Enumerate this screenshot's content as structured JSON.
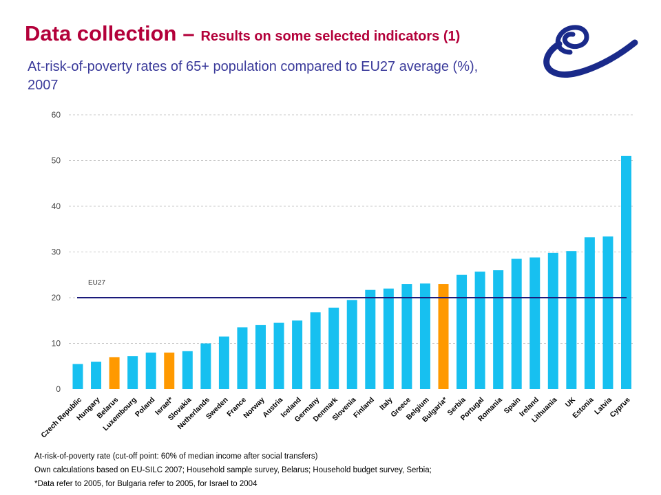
{
  "title": {
    "main": "Data collection",
    "dash": "–",
    "sub": "Results on some selected indicators (1)"
  },
  "subtitle": "At-risk-of-poverty rates of 65+ population compared to EU27 average (%), 2007",
  "logo_icon": "council-of-europe-logo",
  "colors": {
    "title": "#b3003a",
    "subtitle": "#3a3a9a",
    "bar_default": "#17c0f0",
    "bar_highlight": "#ff9900",
    "reference_line": "#1a1a7a",
    "logo": "#1a2a8a"
  },
  "chart_data": {
    "type": "bar",
    "title": "At-risk-of-poverty rates of 65+ population compared to EU27 average (%), 2007",
    "xlabel": "",
    "ylabel": "",
    "ylim": [
      0,
      60
    ],
    "yticks": [
      0,
      10,
      20,
      30,
      40,
      50,
      60
    ],
    "grid": true,
    "categories": [
      "Czech Republic",
      "Hungary",
      "Belarus",
      "Luxembourg",
      "Poland",
      "Israel*",
      "Slovakia",
      "Netherlands",
      "Sweden",
      "France",
      "Norway",
      "Austria",
      "Iceland",
      "Germany",
      "Denmark",
      "Slovenia",
      "Finland",
      "Italy",
      "Greece",
      "Belgium",
      "Bulgaria*",
      "Serbia",
      "Portugal",
      "Romania",
      "Spain",
      "Ireland",
      "Lithuania",
      "UK",
      "Estonia",
      "Latvia",
      "Cyprus"
    ],
    "values": [
      5.5,
      6,
      7,
      7.2,
      8,
      8,
      8.3,
      10,
      11.5,
      13.5,
      14,
      14.5,
      15,
      16.8,
      17.8,
      19.5,
      21.7,
      22,
      23,
      23.1,
      23,
      25,
      25.7,
      26,
      28.5,
      28.8,
      29.8,
      30.2,
      33.2,
      33.4,
      51
    ],
    "highlighted": [
      "Belarus",
      "Israel*",
      "Bulgaria*"
    ],
    "reference_line": {
      "label": "EU27",
      "value": 20
    }
  },
  "footnotes": [
    "At-risk-of-poverty rate (cut-off point: 60% of median income after social transfers)",
    "Own calculations based on EU-SILC 2007; Household sample survey, Belarus; Household budget survey, Serbia;",
    "*Data refer to 2005, for Bulgaria refer to 2005, for Israel to 2004"
  ]
}
